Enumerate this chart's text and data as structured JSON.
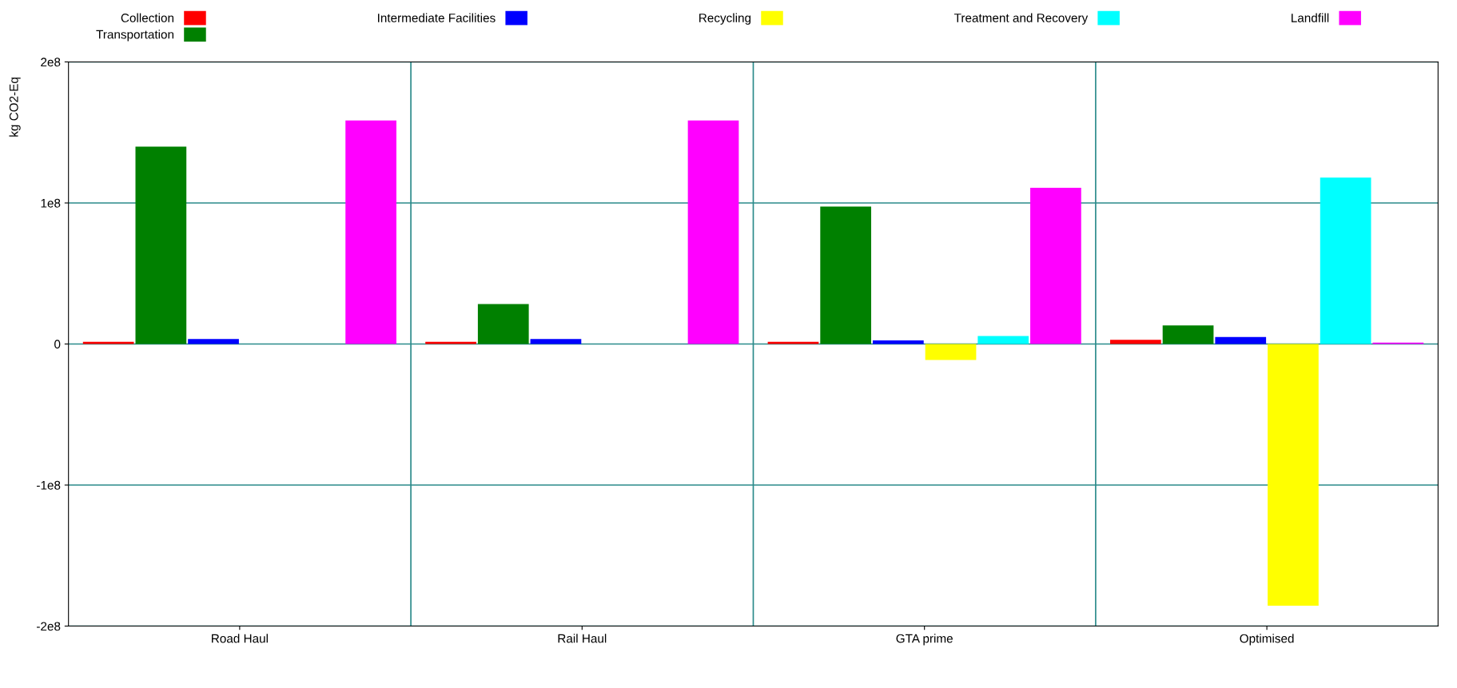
{
  "chart_data": {
    "type": "bar",
    "ylabel": "kg CO2-Eq",
    "categories": [
      "Road Haul",
      "Rail Haul",
      "GTA prime",
      "Optimised"
    ],
    "series": [
      {
        "name": "Collection",
        "color": "#ff0000",
        "values": [
          1500000,
          1500000,
          1500000,
          3000000
        ]
      },
      {
        "name": "Transportation",
        "color": "#008000",
        "values": [
          140000000,
          28300000,
          97500000,
          13200000
        ]
      },
      {
        "name": "Intermediate Facilities",
        "color": "#0000ff",
        "values": [
          3500000,
          3500000,
          2500000,
          5000000
        ]
      },
      {
        "name": "Recycling",
        "color": "#ffff00",
        "values": [
          0,
          0,
          -11300000,
          -185500000
        ]
      },
      {
        "name": "Treatment and Recovery",
        "color": "#00ffff",
        "values": [
          0,
          0,
          5700000,
          118000000
        ]
      },
      {
        "name": "Landfill",
        "color": "#ff00ff",
        "values": [
          158500000,
          158500000,
          110700000,
          1000000
        ]
      }
    ],
    "ylim": [
      -200000000,
      200000000
    ],
    "yticks": [
      {
        "value": -200000000,
        "label": "-2e8"
      },
      {
        "value": -100000000,
        "label": "-1e8"
      },
      {
        "value": 0,
        "label": "0"
      },
      {
        "value": 100000000,
        "label": "1e8"
      },
      {
        "value": 200000000,
        "label": "2e8"
      }
    ],
    "grid": true,
    "legend": "top"
  }
}
